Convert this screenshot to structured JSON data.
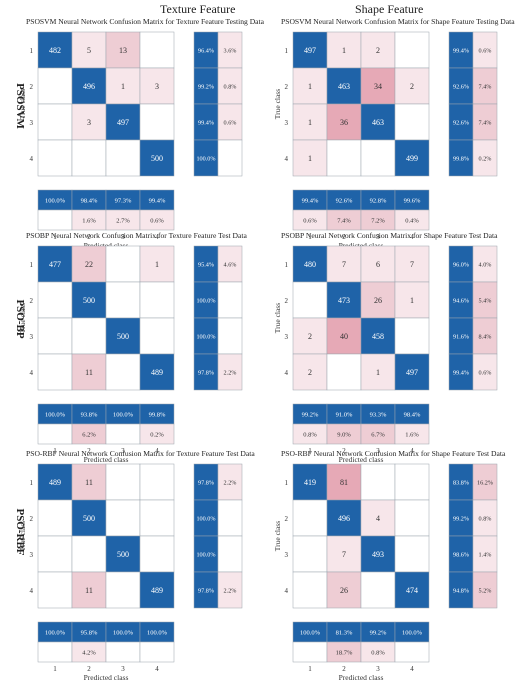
{
  "column_headers": [
    "Texture Feature",
    "Shape Feature"
  ],
  "row_labels": [
    "PSOSVM",
    "PSO-BP",
    "PSO-RBF"
  ],
  "colors": {
    "dark": "#1f63a8",
    "light": "#f7e6ea",
    "mid": "#eecdd4",
    "pink_strong": "#e6a9b6",
    "blue_light": "#c9ddee"
  },
  "chart_data": [
    {
      "type": "heatmap",
      "title": "PSOSVM Neural Network Confusion Matrix for Texture Feature Testing Data",
      "subcaption": "(a)",
      "xlabel": "Predicted class",
      "ylabel": "True class",
      "categories": [
        "1",
        "2",
        "3",
        "4"
      ],
      "matrix": [
        [
          "482",
          "5",
          "13",
          ""
        ],
        [
          "",
          "496",
          "1",
          "3"
        ],
        [
          "",
          "3",
          "497",
          ""
        ],
        [
          "",
          "",
          "",
          "500"
        ]
      ],
      "row_summary": [
        [
          "96.4%",
          "3.6%"
        ],
        [
          "99.2%",
          "0.8%"
        ],
        [
          "99.4%",
          "0.6%"
        ],
        [
          "100.0%",
          ""
        ]
      ],
      "col_summary": [
        [
          "100.0%",
          "98.4%",
          "97.3%",
          "99.4%"
        ],
        [
          "",
          "1.6%",
          "2.7%",
          "0.6%"
        ]
      ]
    },
    {
      "type": "heatmap",
      "title": "PSOSVM Neural Network Confusion Matrix for Shape Feature Testing Data",
      "subcaption": "(b)",
      "xlabel": "Predicted class",
      "ylabel": "True class",
      "categories": [
        "1",
        "2",
        "3",
        "4"
      ],
      "matrix": [
        [
          "497",
          "1",
          "2",
          ""
        ],
        [
          "1",
          "463",
          "34",
          "2"
        ],
        [
          "1",
          "36",
          "463",
          ""
        ],
        [
          "1",
          "",
          "",
          "499"
        ]
      ],
      "row_summary": [
        [
          "99.4%",
          "0.6%"
        ],
        [
          "92.6%",
          "7.4%"
        ],
        [
          "92.6%",
          "7.4%"
        ],
        [
          "99.8%",
          "0.2%"
        ]
      ],
      "col_summary": [
        [
          "99.4%",
          "92.6%",
          "92.8%",
          "99.6%"
        ],
        [
          "0.6%",
          "7.4%",
          "7.2%",
          "0.4%"
        ]
      ]
    },
    {
      "type": "heatmap",
      "title": "PSOBP Neural Network Confusion Matrix for Texture Feature Test Data",
      "subcaption": "(c)",
      "xlabel": "Predicted class",
      "ylabel": "True class",
      "categories": [
        "1",
        "2",
        "3",
        "4"
      ],
      "matrix": [
        [
          "477",
          "22",
          "",
          "1"
        ],
        [
          "",
          "500",
          "",
          ""
        ],
        [
          "",
          "",
          "500",
          ""
        ],
        [
          "",
          "11",
          "",
          "489"
        ]
      ],
      "row_summary": [
        [
          "95.4%",
          "4.6%"
        ],
        [
          "100.0%",
          ""
        ],
        [
          "100.0%",
          ""
        ],
        [
          "97.8%",
          "2.2%"
        ]
      ],
      "col_summary": [
        [
          "100.0%",
          "93.8%",
          "100.0%",
          "99.8%"
        ],
        [
          "",
          "6.2%",
          "",
          "0.2%"
        ]
      ]
    },
    {
      "type": "heatmap",
      "title": "PSOBP Neural Network Confusion Matrix for Shape Feature Test Data",
      "subcaption": "(d)",
      "xlabel": "Predicted class",
      "ylabel": "True class",
      "categories": [
        "1",
        "2",
        "3",
        "4"
      ],
      "matrix": [
        [
          "480",
          "7",
          "6",
          "7"
        ],
        [
          "",
          "473",
          "26",
          "1"
        ],
        [
          "2",
          "40",
          "458",
          ""
        ],
        [
          "2",
          "",
          "1",
          "497"
        ]
      ],
      "row_summary": [
        [
          "96.0%",
          "4.0%"
        ],
        [
          "94.6%",
          "5.4%"
        ],
        [
          "91.6%",
          "8.4%"
        ],
        [
          "99.4%",
          "0.6%"
        ]
      ],
      "col_summary": [
        [
          "99.2%",
          "91.0%",
          "93.3%",
          "98.4%"
        ],
        [
          "0.8%",
          "9.0%",
          "6.7%",
          "1.6%"
        ]
      ]
    },
    {
      "type": "heatmap",
      "title": "PSO-RBF Neural Network Confusion Matrix for Texture Feature Test Data",
      "subcaption": "(e)",
      "xlabel": "Predicted class",
      "ylabel": "True class",
      "categories": [
        "1",
        "2",
        "3",
        "4"
      ],
      "matrix": [
        [
          "489",
          "11",
          "",
          ""
        ],
        [
          "",
          "500",
          "",
          ""
        ],
        [
          "",
          "",
          "500",
          ""
        ],
        [
          "",
          "11",
          "",
          "489"
        ]
      ],
      "row_summary": [
        [
          "97.8%",
          "2.2%"
        ],
        [
          "100.0%",
          ""
        ],
        [
          "100.0%",
          ""
        ],
        [
          "97.8%",
          "2.2%"
        ]
      ],
      "col_summary": [
        [
          "100.0%",
          "95.8%",
          "100.0%",
          "100.0%"
        ],
        [
          "",
          "4.2%",
          "",
          ""
        ]
      ]
    },
    {
      "type": "heatmap",
      "title": "PSO-RBF Neural Network Confusion Matrix for Shape Feature Test Data",
      "subcaption": "(f)",
      "xlabel": "Predicted class",
      "ylabel": "True class",
      "categories": [
        "1",
        "2",
        "3",
        "4"
      ],
      "matrix": [
        [
          "419",
          "81",
          "",
          ""
        ],
        [
          "",
          "496",
          "4",
          ""
        ],
        [
          "",
          "7",
          "493",
          ""
        ],
        [
          "",
          "26",
          "",
          "474"
        ]
      ],
      "row_summary": [
        [
          "83.8%",
          "16.2%"
        ],
        [
          "99.2%",
          "0.8%"
        ],
        [
          "98.6%",
          "1.4%"
        ],
        [
          "94.8%",
          "5.2%"
        ]
      ],
      "col_summary": [
        [
          "100.0%",
          "81.3%",
          "99.2%",
          "100.0%"
        ],
        [
          "",
          "18.7%",
          "0.8%",
          ""
        ]
      ]
    }
  ]
}
